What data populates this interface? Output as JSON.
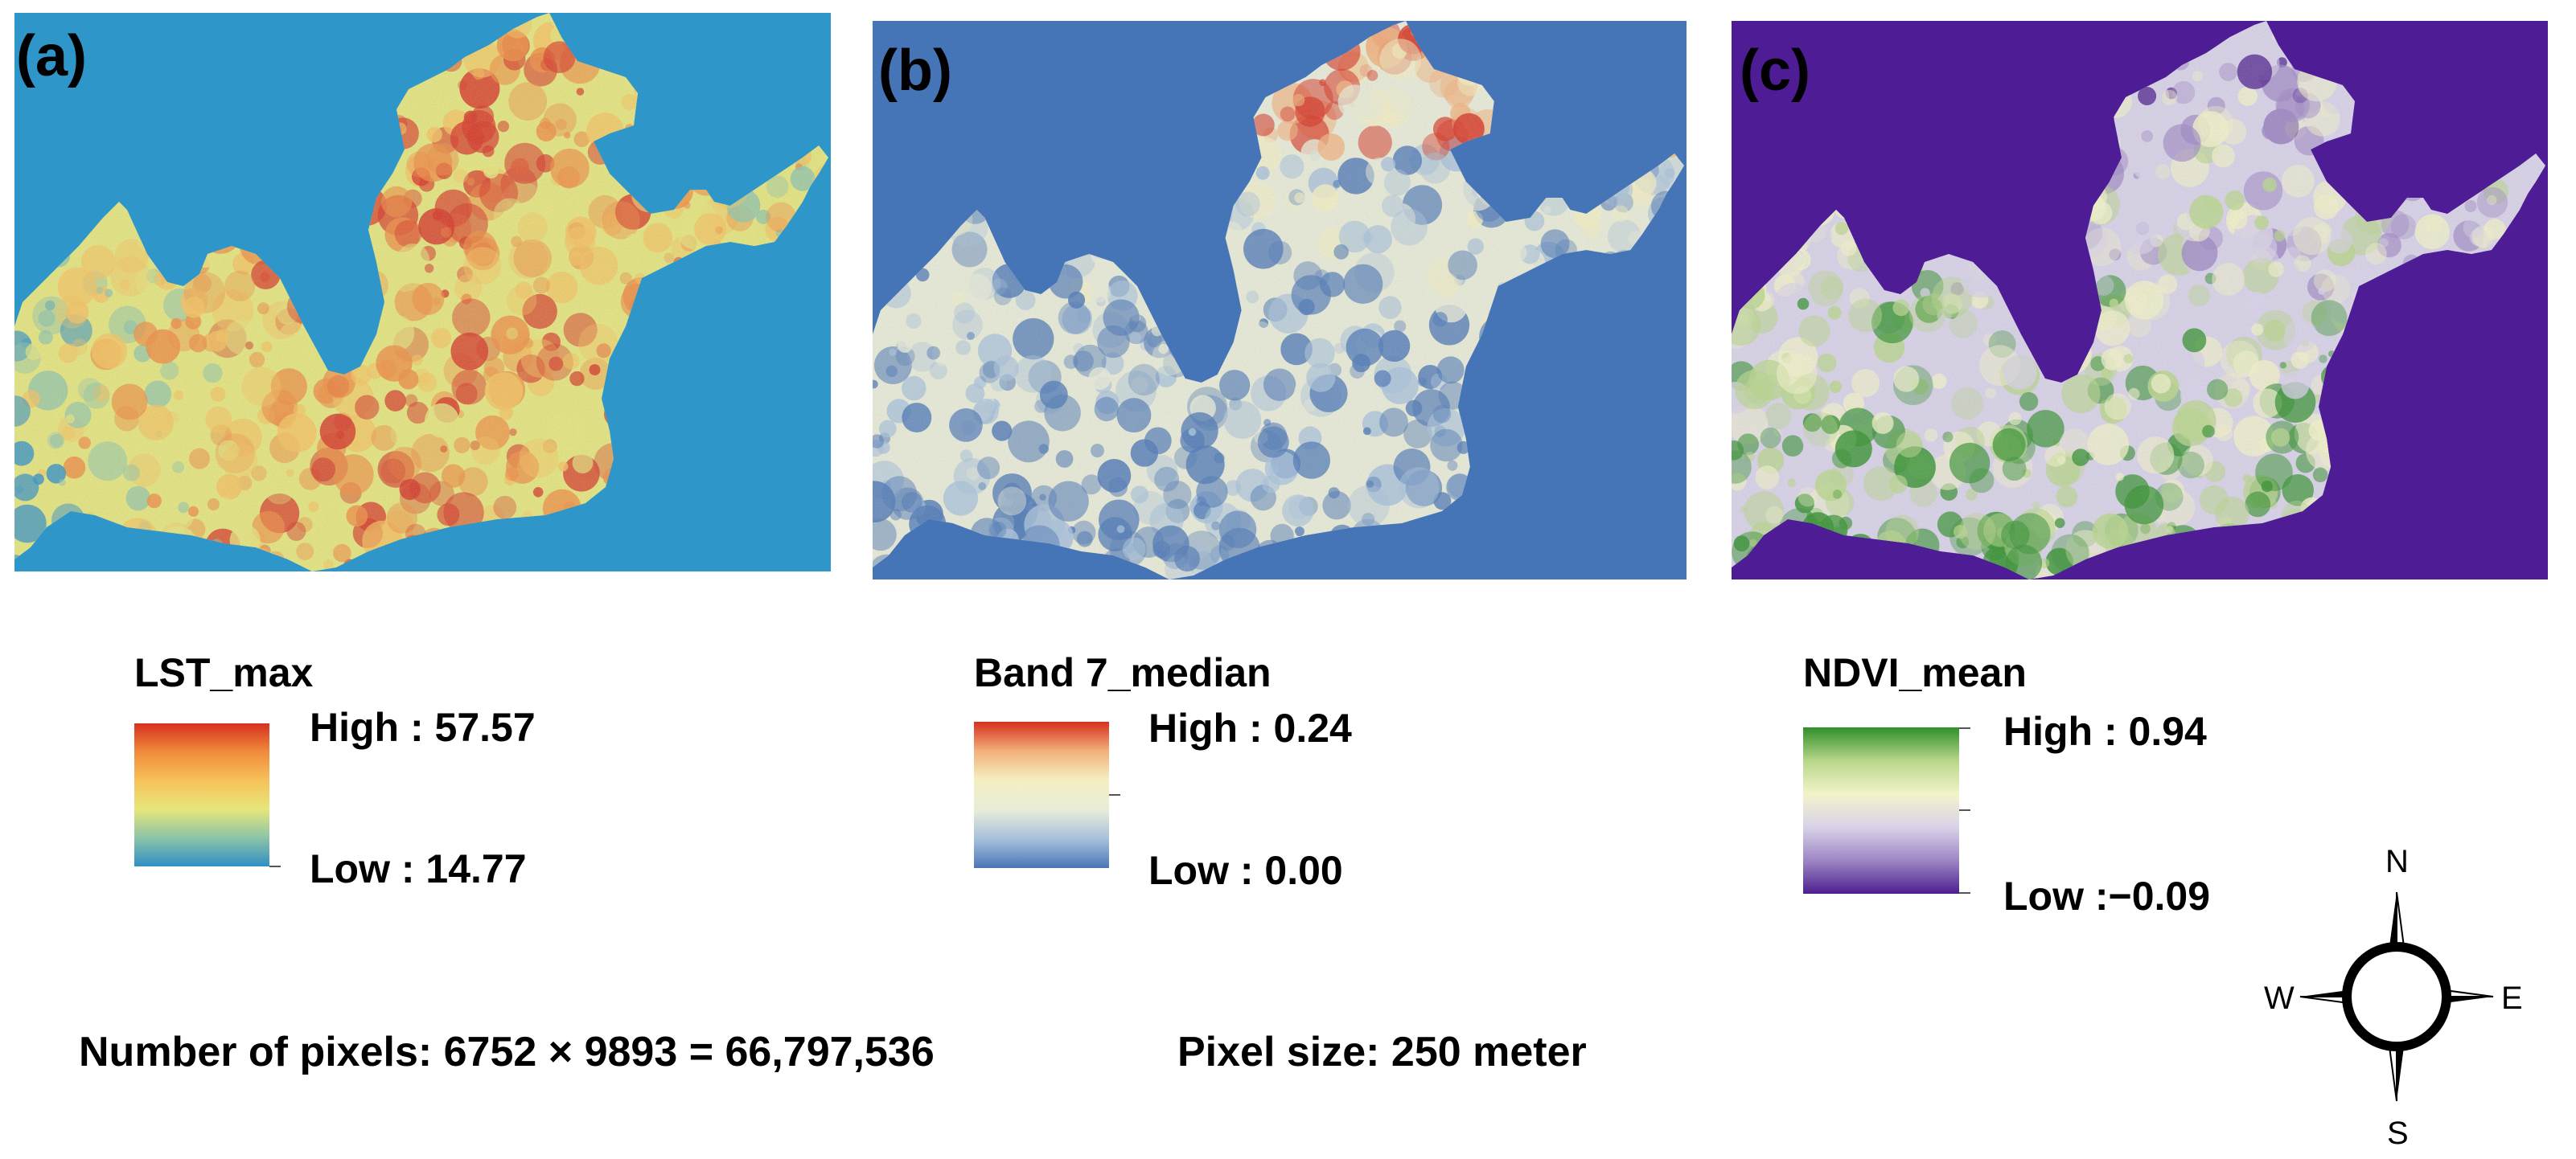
{
  "panels": [
    {
      "label": "(a)",
      "background": "#2e96c8",
      "palette": [
        "#2f8fc4",
        "#8cc4a8",
        "#e6e67a",
        "#f7c25a",
        "#f08b3c",
        "#d7301f"
      ],
      "legend": {
        "title": "LST_max",
        "high": "High : 57.57",
        "low": "Low : 14.77"
      }
    },
    {
      "label": "(b)",
      "background": "#4675b7",
      "palette": [
        "#4a76b6",
        "#a7c1db",
        "#e9ecd8",
        "#f4efc2",
        "#f2b07a",
        "#d7301f"
      ],
      "legend": {
        "title": "Band 7_median",
        "high": "High : 0.24",
        "low": "Low : 0.00"
      }
    },
    {
      "label": "(c)",
      "background": "#4e1c94",
      "palette": [
        "#4d1f8f",
        "#9d86c4",
        "#d9d2e9",
        "#f3f3c9",
        "#b8d68a",
        "#2f8f2a"
      ],
      "legend": {
        "title": "NDVI_mean",
        "high": "High : 0.94",
        "low": "Low :−0.09"
      }
    }
  ],
  "footer": {
    "pixels": "Number of pixels: 6752 × 9893 = 66,797,536",
    "pixel_size": "Pixel size: 250 meter"
  },
  "compass": {
    "n": "N",
    "e": "E",
    "s": "S",
    "w": "W"
  },
  "icons": [
    "north-arrow-icon"
  ]
}
